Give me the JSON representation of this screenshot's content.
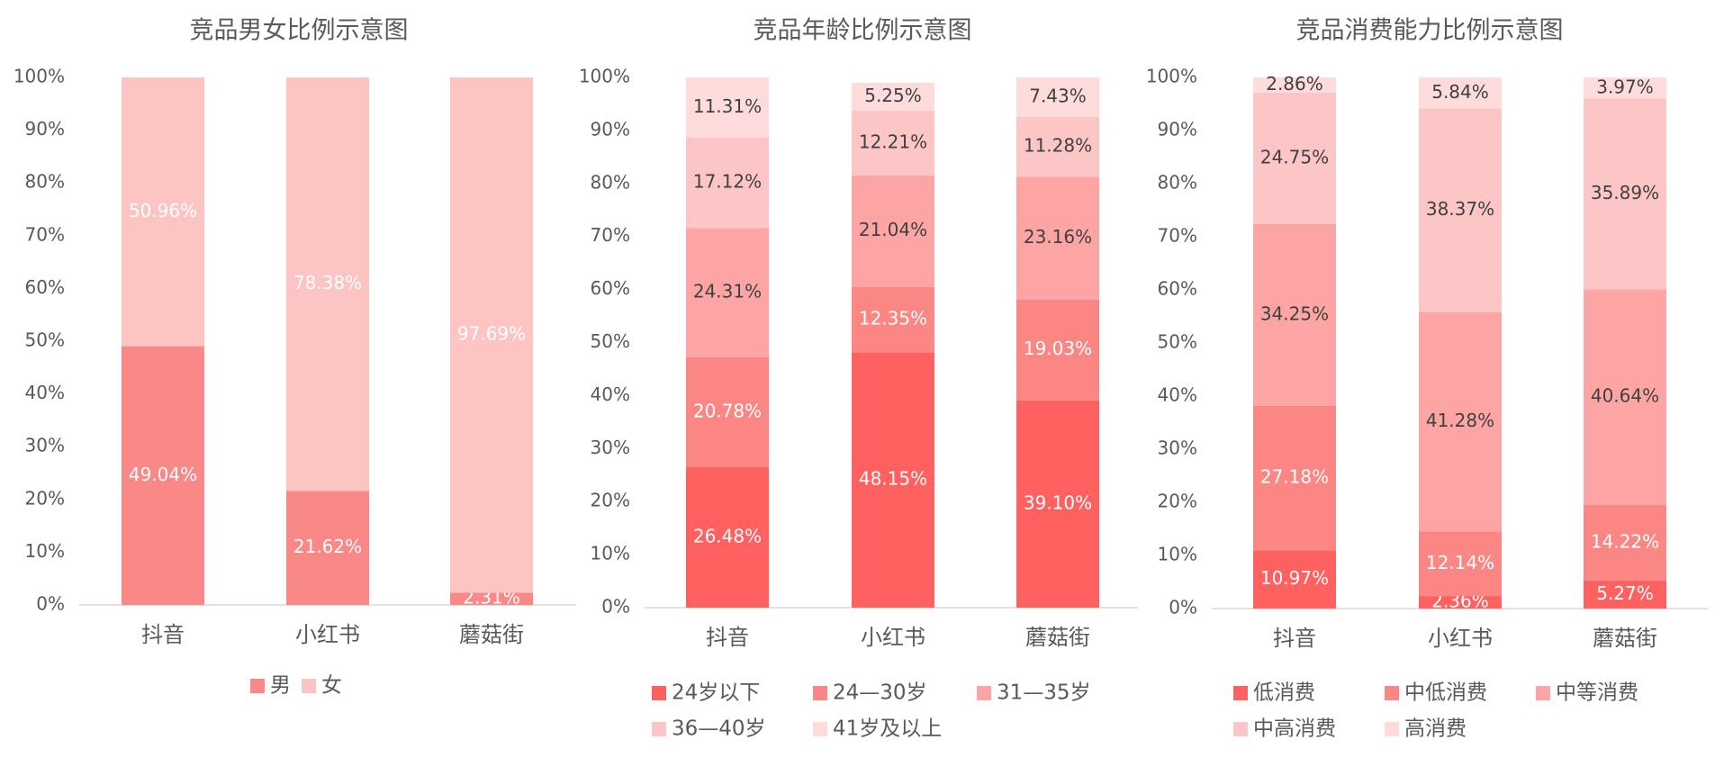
{
  "colors": {
    "axis_text": "#595959",
    "title_text": "#595959",
    "axis_line": "#d9d9d9",
    "label_light": "#ffffff",
    "label_dark": "#404040"
  },
  "chart_data": [
    {
      "type": "bar",
      "stacked": true,
      "percent": true,
      "title": "竞品男女比例示意图",
      "categories": [
        "抖音",
        "小红书",
        "蘑菇街"
      ],
      "ylim": [
        0,
        100
      ],
      "yticks": [
        "0%",
        "10%",
        "20%",
        "30%",
        "40%",
        "50%",
        "60%",
        "70%",
        "80%",
        "90%",
        "100%"
      ],
      "grid": false,
      "legend_position": "bottom",
      "series": [
        {
          "name": "男",
          "color": "#f98886",
          "label_color": "#ffffff",
          "values": [
            49.04,
            21.62,
            2.31
          ]
        },
        {
          "name": "女",
          "color": "#fdc4c4",
          "label_color": "#ffffff",
          "values": [
            50.96,
            78.38,
            97.69
          ]
        }
      ]
    },
    {
      "type": "bar",
      "stacked": true,
      "percent": true,
      "title": "竞品年龄比例示意图",
      "categories": [
        "抖音",
        "小红书",
        "蘑菇街"
      ],
      "ylim": [
        0,
        100
      ],
      "yticks": [
        "0%",
        "10%",
        "20%",
        "30%",
        "40%",
        "50%",
        "60%",
        "70%",
        "80%",
        "90%",
        "100%"
      ],
      "grid": false,
      "legend_position": "bottom",
      "series": [
        {
          "name": "24岁以下",
          "color": "#ff6161",
          "label_color": "#ffffff",
          "values": [
            26.48,
            48.15,
            39.1
          ]
        },
        {
          "name": "24—30岁",
          "color": "#fb8784",
          "label_color": "#ffffff",
          "values": [
            20.78,
            12.35,
            19.03
          ]
        },
        {
          "name": "31—35岁",
          "color": "#fda5a4",
          "label_color": "#404040",
          "values": [
            24.31,
            21.04,
            23.16
          ]
        },
        {
          "name": "36—40岁",
          "color": "#fdc6c6",
          "label_color": "#404040",
          "values": [
            17.12,
            12.21,
            11.28
          ]
        },
        {
          "name": "41岁及以上",
          "color": "#fedcdc",
          "label_color": "#404040",
          "values": [
            11.31,
            5.25,
            7.43
          ]
        }
      ]
    },
    {
      "type": "bar",
      "stacked": true,
      "percent": true,
      "title": "竞品消费能力比例示意图",
      "categories": [
        "抖音",
        "小红书",
        "蘑菇街"
      ],
      "ylim": [
        0,
        100
      ],
      "yticks": [
        "0%",
        "10%",
        "20%",
        "30%",
        "40%",
        "50%",
        "60%",
        "70%",
        "80%",
        "90%",
        "100%"
      ],
      "grid": false,
      "legend_position": "bottom",
      "series": [
        {
          "name": "低消费",
          "color": "#ff6161",
          "label_color": "#ffffff",
          "values": [
            10.97,
            2.36,
            5.27
          ]
        },
        {
          "name": "中低消费",
          "color": "#fb8784",
          "label_color": "#ffffff",
          "values": [
            27.18,
            12.14,
            14.22
          ]
        },
        {
          "name": "中等消费",
          "color": "#fda5a4",
          "label_color": "#404040",
          "values": [
            34.25,
            41.28,
            40.64
          ]
        },
        {
          "name": "中高消费",
          "color": "#fdc6c6",
          "label_color": "#404040",
          "values": [
            24.75,
            38.37,
            35.89
          ]
        },
        {
          "name": "高消费",
          "color": "#fedcdc",
          "label_color": "#404040",
          "values": [
            2.86,
            5.84,
            3.97
          ]
        }
      ]
    }
  ]
}
